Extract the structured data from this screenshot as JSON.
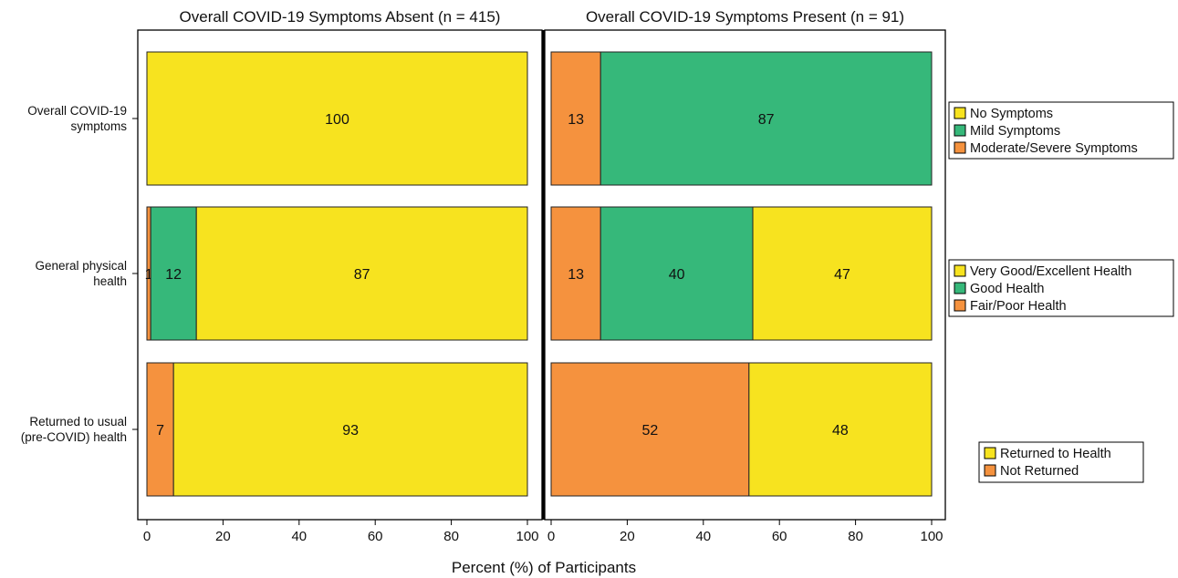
{
  "chart_data": {
    "type": "bar",
    "orientation": "horizontal",
    "stacked": true,
    "xlabel": "Percent (%) of Participants",
    "xlim": [
      0,
      100
    ],
    "xticks": [
      "0",
      "20",
      "40",
      "60",
      "80",
      "100"
    ],
    "grid": false,
    "categories": [
      "Overall COVID-19 symptoms",
      "General physical health",
      "Returned to usual (pre-COVID) health"
    ],
    "category_lines": [
      [
        "Overall COVID-19",
        "symptoms"
      ],
      [
        "General physical",
        "health"
      ],
      [
        "Returned to usual",
        "(pre-COVID) health"
      ]
    ],
    "colors": {
      "yellow": "#f7e31f",
      "green": "#36b87a",
      "orange": "#f5923e"
    },
    "panels": [
      {
        "title": "Overall COVID-19 Symptoms Absent (n = 415)",
        "rows": [
          [
            {
              "label": "No Symptoms",
              "value": 100,
              "color": "yellow"
            }
          ],
          [
            {
              "label": "Fair/Poor Health",
              "value": 1,
              "color": "orange"
            },
            {
              "label": "Good Health",
              "value": 12,
              "color": "green"
            },
            {
              "label": "Very Good/Excellent Health",
              "value": 87,
              "color": "yellow"
            }
          ],
          [
            {
              "label": "Not Returned",
              "value": 7,
              "color": "orange"
            },
            {
              "label": "Returned to Health",
              "value": 93,
              "color": "yellow"
            }
          ]
        ]
      },
      {
        "title": "Overall COVID-19 Symptoms Present (n = 91)",
        "rows": [
          [
            {
              "label": "Moderate/Severe Symptoms",
              "value": 13,
              "color": "orange"
            },
            {
              "label": "Mild Symptoms",
              "value": 87,
              "color": "green"
            }
          ],
          [
            {
              "label": "Fair/Poor Health",
              "value": 13,
              "color": "orange"
            },
            {
              "label": "Good Health",
              "value": 40,
              "color": "green"
            },
            {
              "label": "Very Good/Excellent Health",
              "value": 47,
              "color": "yellow"
            }
          ],
          [
            {
              "label": "Not Returned",
              "value": 52,
              "color": "orange"
            },
            {
              "label": "Returned to Health",
              "value": 48,
              "color": "yellow"
            }
          ]
        ]
      }
    ],
    "legends": [
      [
        {
          "label": "No Symptoms",
          "color": "yellow"
        },
        {
          "label": "Mild Symptoms",
          "color": "green"
        },
        {
          "label": "Moderate/Severe Symptoms",
          "color": "orange"
        }
      ],
      [
        {
          "label": "Very Good/Excellent Health",
          "color": "yellow"
        },
        {
          "label": "Good Health",
          "color": "green"
        },
        {
          "label": "Fair/Poor Health",
          "color": "orange"
        }
      ],
      [
        {
          "label": "Returned to Health",
          "color": "yellow"
        },
        {
          "label": "Not Returned",
          "color": "orange"
        }
      ]
    ],
    "legend_placement": "right"
  }
}
